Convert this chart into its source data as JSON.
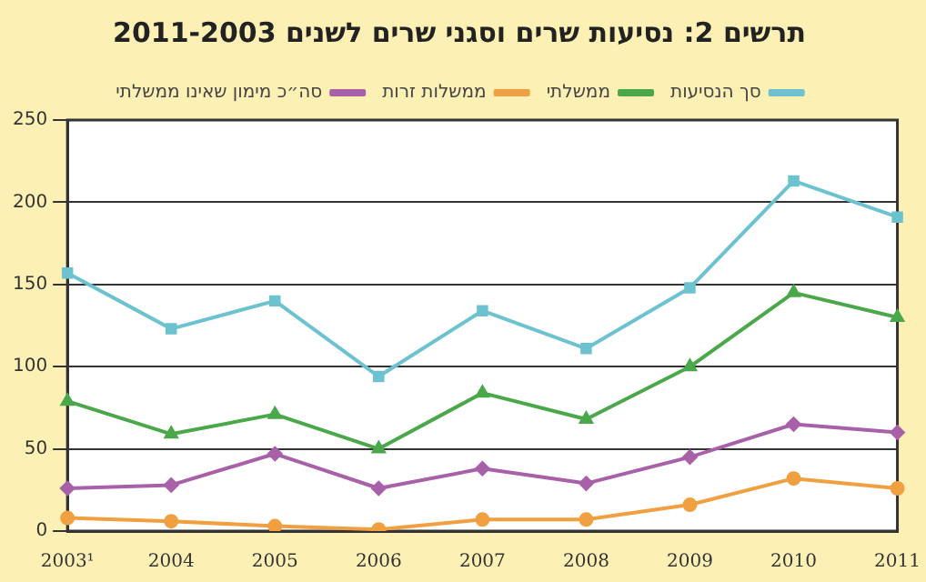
{
  "chart_data": {
    "type": "line",
    "title": "תרשים 2: נסיעות שרים וסגני שרים לשנים 2011-2003",
    "categories": [
      "2003¹",
      "2004",
      "2005",
      "2006",
      "2007",
      "2008",
      "2009",
      "2010",
      "2011"
    ],
    "series": [
      {
        "name": "סך הנסיעות",
        "color": "#6cc3cf",
        "marker": "square",
        "values": [
          157,
          123,
          140,
          94,
          134,
          111,
          148,
          213,
          191
        ]
      },
      {
        "name": "ממשלתי",
        "color": "#4aa84a",
        "marker": "triangle",
        "values": [
          79,
          59,
          71,
          50,
          84,
          68,
          100,
          145,
          130
        ]
      },
      {
        "name": "ממשלות זרות",
        "color": "#f0a040",
        "marker": "circle",
        "values": [
          8,
          6,
          3,
          1,
          7,
          7,
          16,
          32,
          26
        ]
      },
      {
        "name": "סה״כ מימון שאינו ממשלתי",
        "color": "#a860a8",
        "marker": "diamond",
        "values": [
          26,
          28,
          47,
          26,
          38,
          29,
          45,
          65,
          60
        ]
      }
    ],
    "ylim": [
      0,
      250
    ],
    "yticks": [
      0,
      50,
      100,
      150,
      200,
      250
    ],
    "grid": "y",
    "legend": "top",
    "line_style": "solid"
  }
}
